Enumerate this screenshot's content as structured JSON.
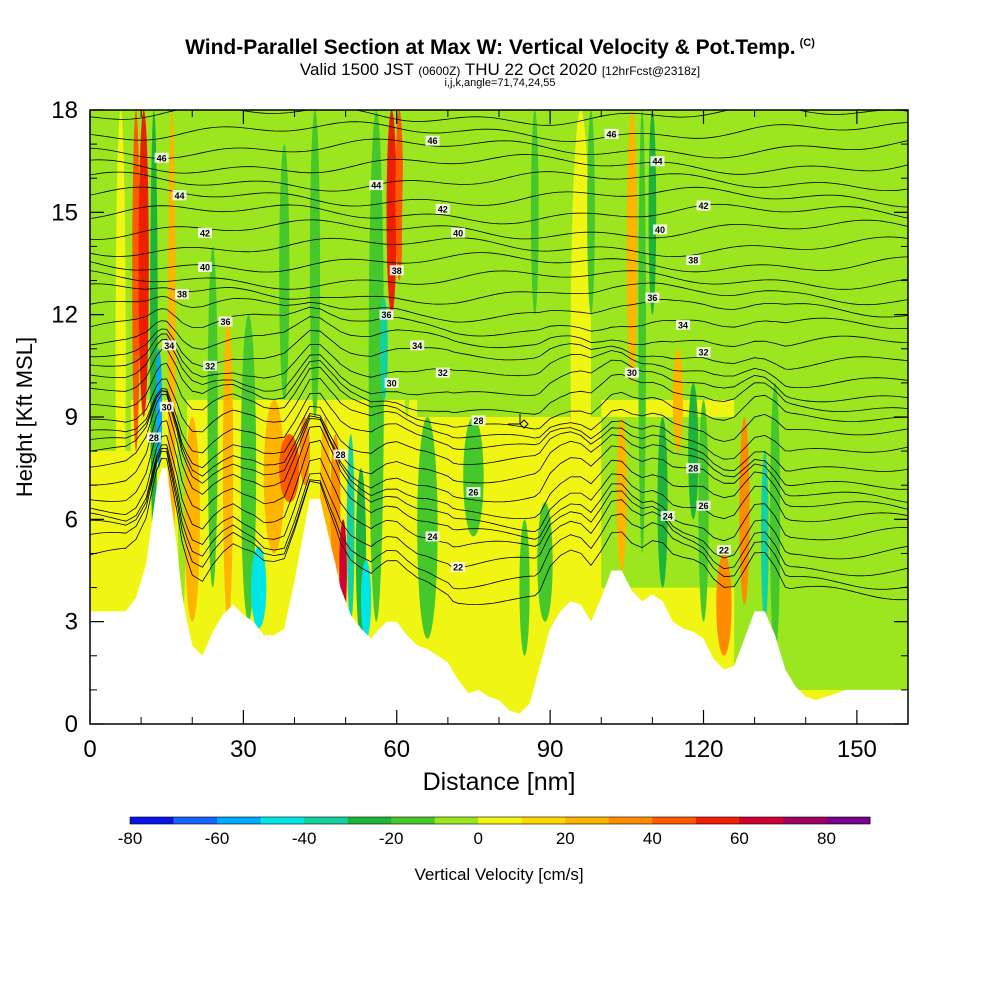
{
  "header": {
    "title": "Wind-Parallel Section at Max W: Vertical Velocity & Pot.Temp.",
    "copyright": "(C)",
    "valid_main": "Valid 1500 JST",
    "valid_utc": "(0600Z)",
    "valid_date": "THU 22 Oct 2020",
    "forecast": "[12hrFcst@2318z]",
    "indices": "i,j,k,angle=71,74,24,55"
  },
  "chart_data": {
    "type": "heatmap",
    "xlabel": "Distance [nm]",
    "ylabel": "Height [Kft MSL]",
    "xlim": [
      0,
      160
    ],
    "ylim": [
      0,
      18
    ],
    "x_ticks": [
      "0",
      "30",
      "60",
      "90",
      "120",
      "150"
    ],
    "x_tick_values": [
      0,
      30,
      60,
      90,
      120,
      150
    ],
    "y_ticks": [
      "0",
      "3",
      "6",
      "9",
      "12",
      "15",
      "18"
    ],
    "y_tick_values": [
      0,
      3,
      6,
      9,
      12,
      15,
      18
    ],
    "colorbar": {
      "label": "Vertical Velocity [cm/s]",
      "range": [
        -80,
        90
      ],
      "tick_labels": [
        "-80",
        "-60",
        "-40",
        "-20",
        "0",
        "20",
        "40",
        "60",
        "80"
      ],
      "tick_values": [
        -80,
        -60,
        -40,
        -20,
        0,
        20,
        40,
        60,
        80
      ],
      "colors": [
        "#0a14e6",
        "#1464ff",
        "#00aaff",
        "#00e6e6",
        "#14d2a0",
        "#1eb43c",
        "#46c82d",
        "#9be61e",
        "#f0f514",
        "#ffd700",
        "#ffb400",
        "#ff8c00",
        "#ff5a00",
        "#f01e00",
        "#d20032",
        "#a00064",
        "#78008c"
      ]
    },
    "terrain_kft": {
      "x": [
        0,
        7,
        9,
        11,
        12,
        13,
        14,
        15,
        17,
        18,
        19,
        20,
        22,
        24,
        26,
        28,
        30,
        32,
        34,
        36,
        38,
        40,
        42,
        43,
        45,
        47,
        48,
        49,
        50,
        51,
        52,
        53,
        55,
        56,
        58,
        60,
        62,
        64,
        66,
        68,
        70,
        72,
        74,
        76,
        78,
        80,
        82,
        84,
        86,
        88,
        90,
        92,
        94,
        96,
        98,
        100,
        102,
        104,
        106,
        108,
        110,
        112,
        114,
        116,
        118,
        120,
        122,
        124,
        126,
        128,
        130,
        132,
        134,
        136,
        138,
        140,
        142,
        144,
        146,
        148,
        150,
        152,
        154,
        156,
        158,
        160
      ],
      "y": [
        3.3,
        3.3,
        3.7,
        4.7,
        5.8,
        6.9,
        7.5,
        7.5,
        5.2,
        3.8,
        3.0,
        2.3,
        2.0,
        2.7,
        3.2,
        3.5,
        3.2,
        3.0,
        2.6,
        2.6,
        2.8,
        4.2,
        5.8,
        6.6,
        6.6,
        5.3,
        4.7,
        4.0,
        3.6,
        3.2,
        3.0,
        2.8,
        2.5,
        2.7,
        3.0,
        3.0,
        2.6,
        2.3,
        2.2,
        2.0,
        1.8,
        1.3,
        0.9,
        1.0,
        0.8,
        0.7,
        0.4,
        0.3,
        0.6,
        1.7,
        2.8,
        3.3,
        3.6,
        3.5,
        3.0,
        3.7,
        4.5,
        4.5,
        3.9,
        3.6,
        3.8,
        3.6,
        3.0,
        2.8,
        2.7,
        2.5,
        1.9,
        1.6,
        1.7,
        2.5,
        3.3,
        3.3,
        2.6,
        1.6,
        1.1,
        0.8,
        0.7,
        0.8,
        0.9,
        1.0,
        1.0,
        1.0,
        1.0,
        1.0,
        1.0,
        1.0
      ]
    },
    "velocity_bands": [
      {
        "x": 6,
        "w": 2.0,
        "z0": 3.5,
        "z1": 18,
        "v": 8
      },
      {
        "x": 9,
        "w": 1.5,
        "z0": 8,
        "z1": 18,
        "v": 40
      },
      {
        "x": 10.5,
        "w": 2.0,
        "z0": 9,
        "z1": 18,
        "v": 55
      },
      {
        "x": 12.5,
        "w": 1.5,
        "z0": 5,
        "z1": 18,
        "v": -25
      },
      {
        "x": 13.5,
        "w": 1.2,
        "z0": 7.5,
        "z1": 11,
        "v": -55
      },
      {
        "x": 16,
        "w": 1.5,
        "z0": 3.5,
        "z1": 18,
        "v": 25
      },
      {
        "x": 18,
        "w": 2.0,
        "z0": 3,
        "z1": 17,
        "v": -8
      },
      {
        "x": 20,
        "w": 3.0,
        "z0": 3,
        "z1": 9,
        "v": 20
      },
      {
        "x": 24,
        "w": 2.0,
        "z0": 4,
        "z1": 14,
        "v": -14
      },
      {
        "x": 27,
        "w": 2.0,
        "z0": 3,
        "z1": 12,
        "v": 24
      },
      {
        "x": 31,
        "w": 3.0,
        "z0": 3,
        "z1": 12,
        "v": -20
      },
      {
        "x": 33,
        "w": 3.0,
        "z0": 2.8,
        "z1": 5.2,
        "v": -48
      },
      {
        "x": 36,
        "w": 4.0,
        "z0": 5,
        "z1": 9.5,
        "v": 22
      },
      {
        "x": 38,
        "w": 2.0,
        "z0": 9.5,
        "z1": 17,
        "v": -18
      },
      {
        "x": 39,
        "w": 4.0,
        "z0": 6.5,
        "z1": 8.5,
        "v": 48
      },
      {
        "x": 42,
        "w": 2.0,
        "z0": 7,
        "z1": 9,
        "v": 35
      },
      {
        "x": 44,
        "w": 2.0,
        "z0": 9,
        "z1": 18,
        "v": -14
      },
      {
        "x": 46,
        "w": 2.0,
        "z0": 4,
        "z1": 9,
        "v": 25
      },
      {
        "x": 48,
        "w": 2.0,
        "z0": 4,
        "z1": 8.5,
        "v": 38
      },
      {
        "x": 49.5,
        "w": 1.5,
        "z0": 3,
        "z1": 6,
        "v": 65
      },
      {
        "x": 51,
        "w": 1.5,
        "z0": 3,
        "z1": 8.5,
        "v": -38
      },
      {
        "x": 53,
        "w": 2.0,
        "z0": 2.5,
        "z1": 7.5,
        "v": -28
      },
      {
        "x": 54,
        "w": 2.0,
        "z0": 2.5,
        "z1": 4.8,
        "v": -48
      },
      {
        "x": 56,
        "w": 3.0,
        "z0": 3,
        "z1": 18,
        "v": -20
      },
      {
        "x": 57.5,
        "w": 1.5,
        "z0": 9.5,
        "z1": 12.5,
        "v": -38
      },
      {
        "x": 59,
        "w": 2.0,
        "z0": 12,
        "z1": 18,
        "v": 58
      },
      {
        "x": 60.5,
        "w": 1.5,
        "z0": 13,
        "z1": 18,
        "v": 45
      },
      {
        "x": 62,
        "w": 2.0,
        "z0": 9,
        "z1": 18,
        "v": -10
      },
      {
        "x": 66,
        "w": 4.0,
        "z0": 2.5,
        "z1": 9,
        "v": -12
      },
      {
        "x": 72,
        "w": 3.0,
        "z0": 9,
        "z1": 18,
        "v": -8
      },
      {
        "x": 75,
        "w": 4.0,
        "z0": 5.5,
        "z1": 9,
        "v": -12
      },
      {
        "x": 82,
        "w": 2.0,
        "z0": 10,
        "z1": 18,
        "v": -8
      },
      {
        "x": 85,
        "w": 2.0,
        "z0": 2,
        "z1": 6,
        "v": -14
      },
      {
        "x": 87,
        "w": 1.5,
        "z0": 12,
        "z1": 18,
        "v": -12
      },
      {
        "x": 89,
        "w": 3.0,
        "z0": 3,
        "z1": 6.5,
        "v": -18
      },
      {
        "x": 95,
        "w": 2.0,
        "z0": 8,
        "z1": 10,
        "v": 32
      },
      {
        "x": 96,
        "w": 4.0,
        "z0": 3.5,
        "z1": 18,
        "v": 8
      },
      {
        "x": 98,
        "w": 1.5,
        "z0": 12,
        "z1": 18,
        "v": -12
      },
      {
        "x": 104,
        "w": 2.0,
        "z0": 4.5,
        "z1": 9,
        "v": 28
      },
      {
        "x": 106,
        "w": 2.0,
        "z0": 10,
        "z1": 18,
        "v": 22
      },
      {
        "x": 108,
        "w": 1.5,
        "z0": 5,
        "z1": 18,
        "v": -18
      },
      {
        "x": 110,
        "w": 1.5,
        "z0": 12,
        "z1": 18,
        "v": -25
      },
      {
        "x": 112,
        "w": 2.0,
        "z0": 4,
        "z1": 9,
        "v": -22
      },
      {
        "x": 115,
        "w": 2.0,
        "z0": 8,
        "z1": 11,
        "v": 24
      },
      {
        "x": 118,
        "w": 2.0,
        "z0": 6,
        "z1": 10,
        "v": -30
      },
      {
        "x": 120,
        "w": 2.0,
        "z0": 3,
        "z1": 9.5,
        "v": -18
      },
      {
        "x": 124,
        "w": 3.0,
        "z0": 2,
        "z1": 5,
        "v": 32
      },
      {
        "x": 128,
        "w": 2.0,
        "z0": 3.5,
        "z1": 9,
        "v": 32
      },
      {
        "x": 132,
        "w": 1.5,
        "z0": 3,
        "z1": 8,
        "v": -40
      },
      {
        "x": 134,
        "w": 2.0,
        "z0": 2,
        "z1": 10,
        "v": -14
      },
      {
        "x": 140,
        "w": 3.0,
        "z0": 3,
        "z1": 18,
        "v": -8
      },
      {
        "x": 150,
        "w": 2.0,
        "z0": 1,
        "z1": 18,
        "v": -8
      }
    ],
    "theta_contours": {
      "levels": [
        20,
        22,
        24,
        26,
        28,
        30,
        32,
        34,
        36,
        38,
        40,
        42,
        44,
        46
      ],
      "labels": [
        {
          "text": "46",
          "x": 14,
          "y": 16.6
        },
        {
          "text": "44",
          "x": 17.5,
          "y": 15.5
        },
        {
          "text": "42",
          "x": 22.5,
          "y": 14.4
        },
        {
          "text": "40",
          "x": 22.5,
          "y": 13.4
        },
        {
          "text": "38",
          "x": 18,
          "y": 12.6
        },
        {
          "text": "36",
          "x": 26.5,
          "y": 11.8
        },
        {
          "text": "34",
          "x": 15.5,
          "y": 11.1
        },
        {
          "text": "32",
          "x": 23.5,
          "y": 10.5
        },
        {
          "text": "30",
          "x": 15,
          "y": 9.3
        },
        {
          "text": "28",
          "x": 12.5,
          "y": 8.4
        },
        {
          "text": "46",
          "x": 67,
          "y": 17.1
        },
        {
          "text": "44",
          "x": 56,
          "y": 15.8
        },
        {
          "text": "42",
          "x": 69,
          "y": 15.1
        },
        {
          "text": "40",
          "x": 72,
          "y": 14.4
        },
        {
          "text": "38",
          "x": 60,
          "y": 13.3
        },
        {
          "text": "36",
          "x": 58,
          "y": 12.0
        },
        {
          "text": "34",
          "x": 64,
          "y": 11.1
        },
        {
          "text": "32",
          "x": 69,
          "y": 10.3
        },
        {
          "text": "30",
          "x": 59,
          "y": 10.0
        },
        {
          "text": "28",
          "x": 49,
          "y": 7.9
        },
        {
          "text": "28",
          "x": 76,
          "y": 8.9
        },
        {
          "text": "26",
          "x": 75,
          "y": 6.8
        },
        {
          "text": "24",
          "x": 67,
          "y": 5.5
        },
        {
          "text": "22",
          "x": 72,
          "y": 4.6
        },
        {
          "text": "46",
          "x": 102,
          "y": 17.3
        },
        {
          "text": "44",
          "x": 111,
          "y": 16.5
        },
        {
          "text": "42",
          "x": 120,
          "y": 15.2
        },
        {
          "text": "40",
          "x": 111.5,
          "y": 14.5
        },
        {
          "text": "38",
          "x": 118,
          "y": 13.6
        },
        {
          "text": "36",
          "x": 110,
          "y": 12.5
        },
        {
          "text": "34",
          "x": 116,
          "y": 11.7
        },
        {
          "text": "32",
          "x": 120,
          "y": 10.9
        },
        {
          "text": "30",
          "x": 106,
          "y": 10.3
        },
        {
          "text": "28",
          "x": 118,
          "y": 7.5
        },
        {
          "text": "26",
          "x": 120,
          "y": 6.4
        },
        {
          "text": "24",
          "x": 113,
          "y": 6.1
        },
        {
          "text": "22",
          "x": 124,
          "y": 5.1
        }
      ]
    }
  }
}
